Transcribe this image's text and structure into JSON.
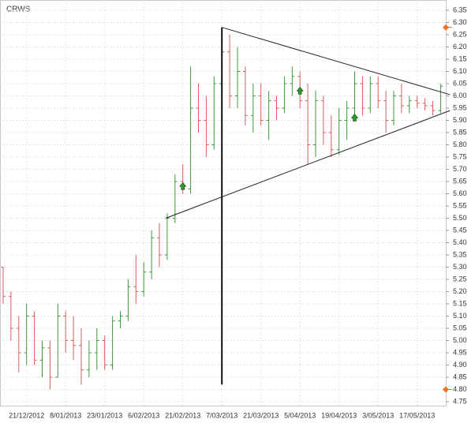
{
  "chart_data": {
    "type": "ohlc",
    "title": "CRWS",
    "categories": [
      null,
      null,
      null,
      "21/12/2012",
      null,
      null,
      null,
      null,
      "8/01/2013",
      null,
      null,
      null,
      null,
      "23/01/2013",
      null,
      null,
      null,
      null,
      "6/02/2013",
      null,
      null,
      null,
      null,
      "21/02/2013",
      null,
      null,
      null,
      null,
      "7/03/2013",
      null,
      null,
      null,
      null,
      "21/03/2013",
      null,
      null,
      null,
      null,
      "5/04/2013",
      null,
      null,
      null,
      null,
      "19/04/2013",
      null,
      null,
      null,
      null,
      "3/05/2013",
      null,
      null,
      null,
      null,
      "17/05/2013",
      null,
      null,
      null
    ],
    "open": [
      5.3,
      5.18,
      5.05,
      4.95,
      5.1,
      4.92,
      4.97,
      4.85,
      5.1,
      5.0,
      4.98,
      4.88,
      4.95,
      5.0,
      4.9,
      5.08,
      5.1,
      5.22,
      5.2,
      5.28,
      5.42,
      5.35,
      5.5,
      5.65,
      5.62,
      5.95,
      5.9,
      5.8,
      6.05,
      6.18,
      6.0,
      6.1,
      5.92,
      6.0,
      5.9,
      5.98,
      5.95,
      6.05,
      6.08,
      5.98,
      5.8,
      5.98,
      5.85,
      5.78,
      5.9,
      5.95,
      6.05,
      5.95,
      6.05,
      5.98,
      5.9,
      6.0,
      5.96,
      5.98,
      5.97,
      5.96,
      5.94
    ],
    "high": [
      5.3,
      5.2,
      5.1,
      5.15,
      5.12,
      5.0,
      5.0,
      5.15,
      5.12,
      5.1,
      5.05,
      5.0,
      5.05,
      5.02,
      5.1,
      5.12,
      5.25,
      5.35,
      5.32,
      5.45,
      5.48,
      5.52,
      5.68,
      5.72,
      6.12,
      6.05,
      6.0,
      6.08,
      6.28,
      6.25,
      6.2,
      6.12,
      6.05,
      6.05,
      6.02,
      6.0,
      6.08,
      6.12,
      6.1,
      6.05,
      6.02,
      6.0,
      5.92,
      5.95,
      5.98,
      6.1,
      6.08,
      6.08,
      6.08,
      6.02,
      6.02,
      6.05,
      6.0,
      6.0,
      5.99,
      5.98,
      6.05
    ],
    "low": [
      5.15,
      5.0,
      4.87,
      4.9,
      4.9,
      4.85,
      4.8,
      4.85,
      4.95,
      4.92,
      4.82,
      4.85,
      4.88,
      4.88,
      4.88,
      5.05,
      5.08,
      5.15,
      5.18,
      5.25,
      5.3,
      5.33,
      5.48,
      5.6,
      5.6,
      5.85,
      5.75,
      5.78,
      6.0,
      5.95,
      5.95,
      5.88,
      5.85,
      5.88,
      5.82,
      5.9,
      5.93,
      6.0,
      5.95,
      5.72,
      5.75,
      5.8,
      5.75,
      5.76,
      5.82,
      5.9,
      5.92,
      5.93,
      5.95,
      5.85,
      5.88,
      5.93,
      5.93,
      5.95,
      5.94,
      5.92,
      5.93
    ],
    "close": [
      5.18,
      5.05,
      4.95,
      5.1,
      4.92,
      4.97,
      4.85,
      5.1,
      5.0,
      4.98,
      4.88,
      4.95,
      5.0,
      4.9,
      5.08,
      5.1,
      5.22,
      5.2,
      5.28,
      5.42,
      5.35,
      5.5,
      5.65,
      5.62,
      5.95,
      5.9,
      5.8,
      6.05,
      6.18,
      6.0,
      6.1,
      5.92,
      6.0,
      5.9,
      5.98,
      5.95,
      6.05,
      6.08,
      5.98,
      5.8,
      5.98,
      5.85,
      5.78,
      5.9,
      5.95,
      6.05,
      5.95,
      6.05,
      5.98,
      5.9,
      6.0,
      5.96,
      5.98,
      5.97,
      5.96,
      5.94,
      6.04
    ],
    "up_color": "#3c9a3c",
    "down_color": "#e05a5a",
    "ylim": [
      4.75,
      6.35
    ],
    "yticks": [
      {
        "value": 4.75,
        "label": "4.75"
      },
      {
        "value": 4.8,
        "label": "4.80"
      },
      {
        "value": 4.85,
        "label": "4.85"
      },
      {
        "value": 4.9,
        "label": "4.90"
      },
      {
        "value": 4.95,
        "label": "4.95"
      },
      {
        "value": 5,
        "label": "5.00"
      },
      {
        "value": 5.05,
        "label": "5.05"
      },
      {
        "value": 5.1,
        "label": "5.10"
      },
      {
        "value": 5.15,
        "label": "5.15"
      },
      {
        "value": 5.2,
        "label": "5.20"
      },
      {
        "value": 5.25,
        "label": "5.25"
      },
      {
        "value": 5.3,
        "label": "5.30"
      },
      {
        "value": 5.35,
        "label": "5.35"
      },
      {
        "value": 5.4,
        "label": "5.40"
      },
      {
        "value": 5.45,
        "label": "5.45"
      },
      {
        "value": 5.5,
        "label": "5.50"
      },
      {
        "value": 5.55,
        "label": "5.55"
      },
      {
        "value": 5.6,
        "label": "5.60"
      },
      {
        "value": 5.65,
        "label": "5.65"
      },
      {
        "value": 5.7,
        "label": "5.70"
      },
      {
        "value": 5.75,
        "label": "5.75"
      },
      {
        "value": 5.8,
        "label": "5.80"
      },
      {
        "value": 5.85,
        "label": "5.85"
      },
      {
        "value": 5.9,
        "label": "5.90"
      },
      {
        "value": 5.95,
        "label": "5.95"
      },
      {
        "value": 6,
        "label": "6.00"
      },
      {
        "value": 6.05,
        "label": "6.05"
      },
      {
        "value": 6.1,
        "label": "6.10"
      },
      {
        "value": 6.15,
        "label": "6.15"
      },
      {
        "value": 6.2,
        "label": "6.20"
      },
      {
        "value": 6.25,
        "label": "6.25"
      },
      {
        "value": 6.3,
        "label": "6.30"
      },
      {
        "value": 6.35,
        "label": "6.35"
      }
    ],
    "grid": true,
    "markers": [
      6.28,
      4.8
    ],
    "marker_color": "#f07020",
    "trendlines": [
      {
        "x": [
          28,
          57.2
        ],
        "y": [
          6.28,
          6.005
        ]
      },
      {
        "x": [
          20.8,
          57.2
        ],
        "y": [
          5.5,
          5.94
        ]
      }
    ],
    "vline": {
      "x": 28,
      "y": [
        6.28,
        4.82
      ]
    },
    "signals": [
      {
        "x": 23,
        "y": 5.63
      },
      {
        "x": 38,
        "y": 6.02
      },
      {
        "x": 45,
        "y": 5.91
      }
    ],
    "signal_color": "#2a9a2a"
  }
}
